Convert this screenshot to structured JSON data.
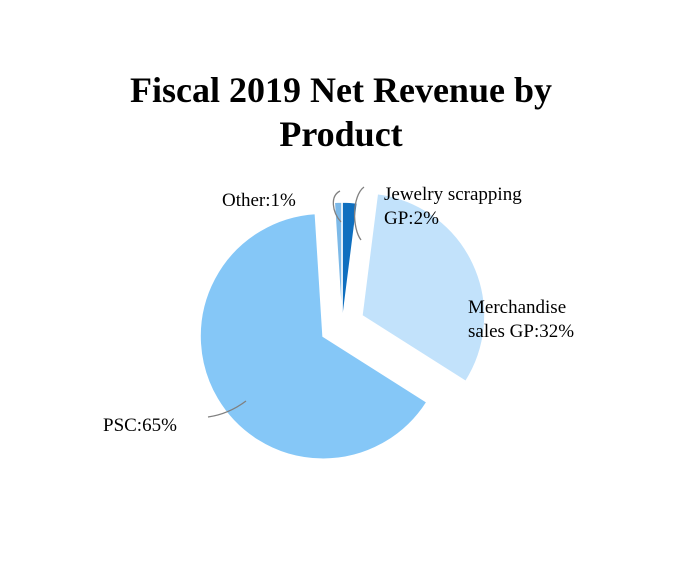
{
  "chart_data": {
    "type": "pie",
    "title_lines": [
      "Fiscal 2019 Net Revenue by",
      "Product"
    ],
    "slices": [
      {
        "label_lines": [
          "Jewelry scrapping",
          "GP:2%"
        ],
        "value": 2,
        "color": "#0f6fbf",
        "exploded": false
      },
      {
        "label_lines": [
          "Merchandise",
          "sales GP:32%"
        ],
        "value": 32,
        "color": "#c2e2fb",
        "exploded": true
      },
      {
        "label_lines": [
          "PSC:65%"
        ],
        "value": 65,
        "color": "#85c7f7",
        "exploded": true
      },
      {
        "label_lines": [
          "Other:1%"
        ],
        "value": 1,
        "color": "#7cb9e8",
        "exploded": false
      }
    ],
    "leader_color": "#808080",
    "legend": "none"
  }
}
